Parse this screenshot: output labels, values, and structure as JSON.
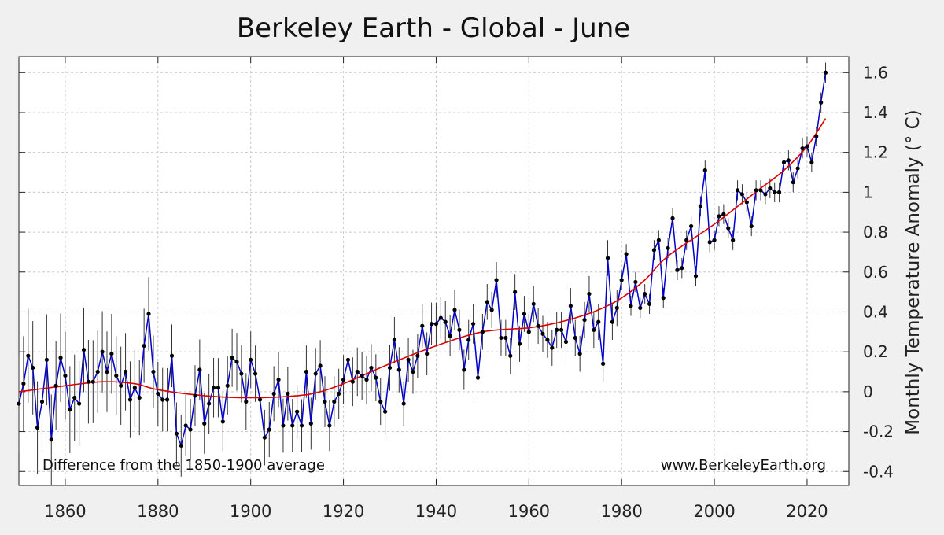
{
  "chart_data": {
    "type": "line",
    "title": "Berkeley Earth - Global - June",
    "xlabel": "",
    "ylabel": "Monthly Temperature Anomaly (° C)",
    "xlim": [
      1850,
      2029
    ],
    "ylim": [
      -0.47,
      1.68
    ],
    "grid": true,
    "x_ticks": [
      1860,
      1880,
      1900,
      1920,
      1940,
      1960,
      1980,
      2000,
      2020
    ],
    "x_tick_labels": [
      "1860",
      "1880",
      "1900",
      "1920",
      "1940",
      "1960",
      "1980",
      "2000",
      "2020"
    ],
    "y_ticks": [
      -0.4,
      -0.2,
      0,
      0.2,
      0.4,
      0.6,
      0.8,
      1.0,
      1.2,
      1.4,
      1.6
    ],
    "y_tick_labels": [
      "-0.4",
      "-0.2",
      "0",
      "0.2",
      "0.4",
      "0.6",
      "0.8",
      "1",
      "1.2",
      "1.4",
      "1.6"
    ],
    "annotations": {
      "baseline_note": "Difference from the 1850-1900 average",
      "source": "www.BerkeleyEarth.org"
    },
    "series": [
      {
        "name": "June anomaly",
        "color": "#0000cc",
        "marker_color": "#000000",
        "x_start": 1850,
        "values": [
          -0.06,
          0.04,
          0.18,
          0.12,
          -0.18,
          -0.05,
          0.16,
          -0.24,
          0.03,
          0.17,
          0.08,
          -0.09,
          -0.03,
          -0.06,
          0.21,
          0.05,
          0.05,
          0.1,
          0.2,
          0.1,
          0.19,
          0.08,
          0.03,
          0.1,
          -0.04,
          0.02,
          -0.03,
          0.23,
          0.39,
          0.1,
          -0.01,
          -0.04,
          -0.04,
          0.18,
          -0.21,
          -0.27,
          -0.17,
          -0.19,
          -0.02,
          0.11,
          -0.16,
          -0.06,
          0.02,
          0.02,
          -0.15,
          0.03,
          0.17,
          0.15,
          0.09,
          -0.05,
          0.16,
          0.09,
          -0.04,
          -0.23,
          -0.19,
          -0.01,
          0.06,
          -0.17,
          -0.01,
          -0.17,
          -0.1,
          -0.17,
          0.1,
          -0.16,
          0.09,
          0.13,
          -0.05,
          -0.17,
          -0.05,
          -0.01,
          0.06,
          0.16,
          0.05,
          0.1,
          0.08,
          0.06,
          0.12,
          0.07,
          -0.05,
          -0.1,
          0.12,
          0.26,
          0.11,
          -0.06,
          0.16,
          0.1,
          0.18,
          0.33,
          0.19,
          0.34,
          0.34,
          0.37,
          0.35,
          0.28,
          0.41,
          0.31,
          0.11,
          0.26,
          0.34,
          0.07,
          0.3,
          0.45,
          0.41,
          0.56,
          0.27,
          0.27,
          0.18,
          0.5,
          0.24,
          0.39,
          0.3,
          0.44,
          0.33,
          0.29,
          0.26,
          0.22,
          0.31,
          0.31,
          0.25,
          0.43,
          0.27,
          0.19,
          0.36,
          0.49,
          0.31,
          0.35,
          0.14,
          0.67,
          0.35,
          0.42,
          0.56,
          0.69,
          0.43,
          0.55,
          0.42,
          0.49,
          0.44,
          0.71,
          0.76,
          0.47,
          0.72,
          0.87,
          0.61,
          0.62,
          0.76,
          0.83,
          0.58,
          0.93,
          1.11,
          0.75,
          0.76,
          0.88,
          0.89,
          0.82,
          0.76,
          1.01,
          0.99,
          0.95,
          0.83,
          1.01,
          1.01,
          0.99,
          1.02,
          1.0,
          1.0,
          1.15,
          1.16,
          1.05,
          1.12,
          1.22,
          1.23,
          1.15,
          1.28,
          1.45,
          1.6
        ]
      },
      {
        "name": "Smoothed trend",
        "color": "#dd0000",
        "x": [
          1850,
          1860,
          1868,
          1875,
          1880,
          1890,
          1900,
          1910,
          1915,
          1920,
          1930,
          1940,
          1950,
          1960,
          1965,
          1970,
          1975,
          1980,
          1985,
          1990,
          2000,
          2010,
          2015,
          2020,
          2024
        ],
        "values": [
          0.0,
          0.03,
          0.05,
          0.04,
          0.01,
          -0.02,
          -0.03,
          -0.02,
          0.0,
          0.04,
          0.14,
          0.23,
          0.3,
          0.32,
          0.34,
          0.37,
          0.41,
          0.47,
          0.56,
          0.68,
          0.84,
          1.02,
          1.11,
          1.23,
          1.37
        ]
      }
    ]
  }
}
